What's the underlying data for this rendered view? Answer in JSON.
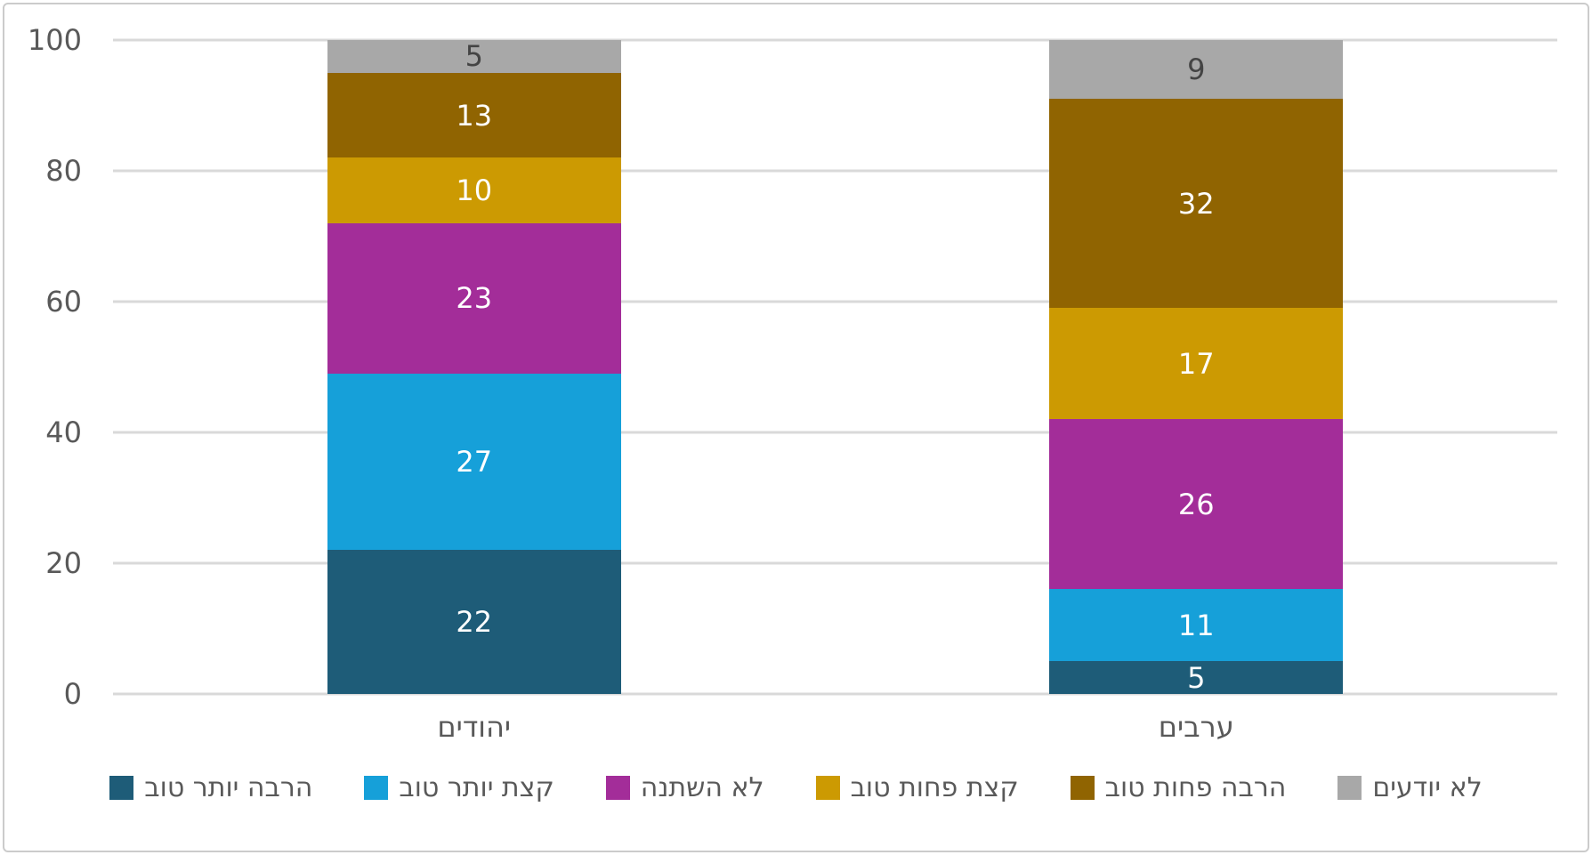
{
  "chart_data": {
    "type": "bar",
    "subtype": "stacked-column",
    "title": "",
    "xlabel": "",
    "ylabel": "",
    "categories": [
      "יהודים",
      "ערבים"
    ],
    "series": [
      {
        "name": "הרבה יותר טוב",
        "color": "#1E5C78",
        "label_color": "#FFFFFF",
        "values": [
          22,
          5
        ]
      },
      {
        "name": "קצת יותר טוב",
        "color": "#16A0D9",
        "label_color": "#FFFFFF",
        "values": [
          27,
          11
        ]
      },
      {
        "name": "לא השתנה",
        "color": "#A32D99",
        "label_color": "#FFFFFF",
        "values": [
          23,
          26
        ]
      },
      {
        "name": "קצת פחות טוב",
        "color": "#CC9A02",
        "label_color": "#FFFFFF",
        "values": [
          10,
          17
        ]
      },
      {
        "name": "הרבה פחות טוב",
        "color": "#906401",
        "label_color": "#FFFFFF",
        "values": [
          13,
          32
        ]
      },
      {
        "name": "לא יודעים",
        "color": "#A8A8A8",
        "label_color": "#444444",
        "values": [
          5,
          9
        ]
      }
    ],
    "yticks": [
      0,
      20,
      40,
      60,
      80,
      100
    ],
    "ylim": [
      0,
      100
    ],
    "grid": true,
    "legend_position": "bottom",
    "text_direction": "rtl"
  },
  "colors": {
    "grid": "#D9D9D9",
    "axis_text": "#595959",
    "card_border": "#CBCBCB",
    "background": "#FFFFFF"
  }
}
